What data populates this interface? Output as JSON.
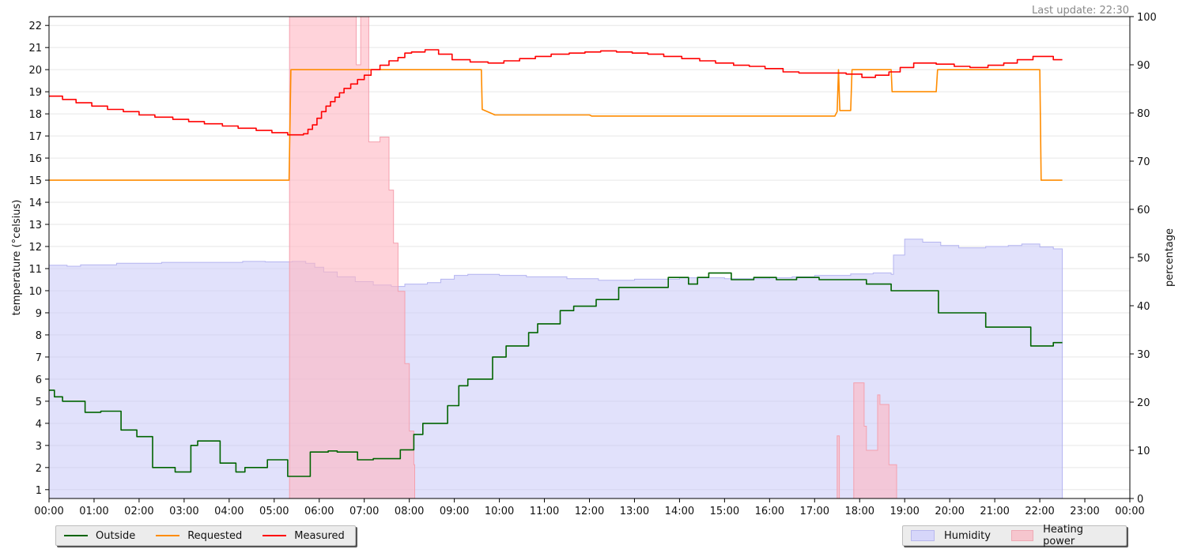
{
  "status": {
    "last_update": "Last update: 22:30"
  },
  "legend_left": [
    {
      "label": "Outside",
      "color": "#006400"
    },
    {
      "label": "Requested",
      "color": "#ff8c00"
    },
    {
      "label": "Measured",
      "color": "#ff0000"
    }
  ],
  "legend_right": [
    {
      "label": "Humidity",
      "color": "#c8c8f8"
    },
    {
      "label": "Heating power",
      "color": "#f8c0c8"
    }
  ],
  "chart_data": {
    "type": "line",
    "xlabel": "",
    "x_ticks": [
      "00:00",
      "01:00",
      "02:00",
      "03:00",
      "04:00",
      "05:00",
      "06:00",
      "07:00",
      "08:00",
      "09:00",
      "10:00",
      "11:00",
      "12:00",
      "13:00",
      "14:00",
      "15:00",
      "16:00",
      "17:00",
      "18:00",
      "19:00",
      "20:00",
      "21:00",
      "22:00",
      "23:00",
      "00:00"
    ],
    "xlim": [
      0,
      24
    ],
    "left_axis": {
      "label": "temperature (°celsius)",
      "ylim": [
        0.6,
        22.4
      ],
      "ticks": [
        1,
        2,
        3,
        4,
        5,
        6,
        7,
        8,
        9,
        10,
        11,
        12,
        13,
        14,
        15,
        16,
        17,
        18,
        19,
        20,
        21,
        22
      ]
    },
    "right_axis": {
      "label": "percentage",
      "ylim": [
        0,
        100
      ],
      "ticks": [
        0,
        10,
        20,
        30,
        40,
        50,
        60,
        70,
        80,
        90,
        100
      ]
    },
    "grid": true,
    "legend": [
      "bottom-left",
      "bottom-right"
    ],
    "series": [
      {
        "name": "Outside",
        "axis": "left",
        "kind": "step",
        "color": "#006400",
        "points": [
          [
            0,
            5.5
          ],
          [
            0.12,
            5.2
          ],
          [
            0.3,
            5.0
          ],
          [
            0.8,
            4.5
          ],
          [
            1.15,
            4.55
          ],
          [
            1.6,
            3.7
          ],
          [
            1.95,
            3.4
          ],
          [
            2.3,
            2.0
          ],
          [
            2.8,
            1.8
          ],
          [
            3.15,
            3.0
          ],
          [
            3.3,
            3.2
          ],
          [
            3.8,
            2.2
          ],
          [
            4.15,
            1.8
          ],
          [
            4.35,
            2.0
          ],
          [
            4.85,
            2.35
          ],
          [
            5.3,
            1.6
          ],
          [
            5.8,
            2.7
          ],
          [
            6.2,
            2.75
          ],
          [
            6.4,
            2.7
          ],
          [
            6.85,
            2.35
          ],
          [
            7.2,
            2.4
          ],
          [
            7.8,
            2.8
          ],
          [
            8.1,
            3.5
          ],
          [
            8.3,
            4.0
          ],
          [
            8.85,
            4.8
          ],
          [
            9.1,
            5.7
          ],
          [
            9.3,
            6.0
          ],
          [
            9.85,
            7.0
          ],
          [
            10.15,
            7.5
          ],
          [
            10.65,
            8.1
          ],
          [
            10.85,
            8.5
          ],
          [
            11.35,
            9.1
          ],
          [
            11.65,
            9.3
          ],
          [
            12.15,
            9.6
          ],
          [
            12.65,
            10.15
          ],
          [
            13.75,
            10.6
          ],
          [
            14.2,
            10.3
          ],
          [
            14.4,
            10.6
          ],
          [
            14.65,
            10.8
          ],
          [
            15.15,
            10.5
          ],
          [
            15.65,
            10.6
          ],
          [
            16.15,
            10.5
          ],
          [
            16.6,
            10.6
          ],
          [
            17.1,
            10.5
          ],
          [
            18.15,
            10.3
          ],
          [
            18.7,
            10.0
          ],
          [
            19.75,
            9.0
          ],
          [
            20.8,
            8.35
          ],
          [
            21.8,
            7.5
          ],
          [
            22.3,
            7.65
          ],
          [
            22.5,
            7.65
          ]
        ]
      },
      {
        "name": "Requested",
        "axis": "left",
        "kind": "line",
        "color": "#ff8c00",
        "points": [
          [
            0,
            15
          ],
          [
            5.33,
            15
          ],
          [
            5.37,
            20
          ],
          [
            9.6,
            20
          ],
          [
            9.62,
            18.2
          ],
          [
            9.85,
            18.0
          ],
          [
            9.9,
            17.95
          ],
          [
            12.0,
            17.95
          ],
          [
            12.05,
            17.9
          ],
          [
            17.45,
            17.9
          ],
          [
            17.5,
            18.1
          ],
          [
            17.53,
            20
          ],
          [
            17.56,
            18.15
          ],
          [
            17.8,
            18.15
          ],
          [
            17.83,
            20
          ],
          [
            18.7,
            20
          ],
          [
            18.72,
            19.0
          ],
          [
            19.7,
            19.0
          ],
          [
            19.73,
            20
          ],
          [
            22.0,
            20
          ],
          [
            22.03,
            15
          ],
          [
            22.5,
            15
          ]
        ]
      },
      {
        "name": "Measured",
        "axis": "left",
        "kind": "step",
        "color": "#ff0000",
        "points": [
          [
            0,
            18.8
          ],
          [
            0.3,
            18.65
          ],
          [
            0.6,
            18.5
          ],
          [
            0.95,
            18.35
          ],
          [
            1.3,
            18.2
          ],
          [
            1.65,
            18.1
          ],
          [
            2.0,
            17.95
          ],
          [
            2.35,
            17.85
          ],
          [
            2.75,
            17.75
          ],
          [
            3.1,
            17.65
          ],
          [
            3.45,
            17.55
          ],
          [
            3.85,
            17.45
          ],
          [
            4.2,
            17.35
          ],
          [
            4.6,
            17.25
          ],
          [
            4.95,
            17.15
          ],
          [
            5.3,
            17.05
          ],
          [
            5.65,
            17.1
          ],
          [
            5.75,
            17.3
          ],
          [
            5.85,
            17.5
          ],
          [
            5.95,
            17.8
          ],
          [
            6.05,
            18.1
          ],
          [
            6.15,
            18.35
          ],
          [
            6.25,
            18.55
          ],
          [
            6.35,
            18.75
          ],
          [
            6.45,
            18.95
          ],
          [
            6.55,
            19.15
          ],
          [
            6.7,
            19.35
          ],
          [
            6.85,
            19.55
          ],
          [
            7.0,
            19.75
          ],
          [
            7.15,
            20.0
          ],
          [
            7.35,
            20.2
          ],
          [
            7.55,
            20.4
          ],
          [
            7.75,
            20.55
          ],
          [
            7.9,
            20.75
          ],
          [
            8.05,
            20.8
          ],
          [
            8.35,
            20.9
          ],
          [
            8.65,
            20.7
          ],
          [
            8.95,
            20.45
          ],
          [
            9.35,
            20.35
          ],
          [
            9.75,
            20.3
          ],
          [
            10.1,
            20.4
          ],
          [
            10.45,
            20.5
          ],
          [
            10.8,
            20.6
          ],
          [
            11.15,
            20.7
          ],
          [
            11.55,
            20.75
          ],
          [
            11.9,
            20.8
          ],
          [
            12.25,
            20.85
          ],
          [
            12.6,
            20.8
          ],
          [
            12.95,
            20.75
          ],
          [
            13.3,
            20.7
          ],
          [
            13.65,
            20.6
          ],
          [
            14.05,
            20.5
          ],
          [
            14.45,
            20.4
          ],
          [
            14.8,
            20.3
          ],
          [
            15.2,
            20.2
          ],
          [
            15.55,
            20.15
          ],
          [
            15.9,
            20.05
          ],
          [
            16.3,
            19.9
          ],
          [
            16.65,
            19.85
          ],
          [
            17.0,
            19.85
          ],
          [
            17.35,
            19.85
          ],
          [
            17.7,
            19.8
          ],
          [
            18.05,
            19.65
          ],
          [
            18.35,
            19.75
          ],
          [
            18.65,
            19.9
          ],
          [
            18.9,
            20.1
          ],
          [
            19.2,
            20.3
          ],
          [
            19.7,
            20.25
          ],
          [
            20.1,
            20.15
          ],
          [
            20.45,
            20.1
          ],
          [
            20.85,
            20.2
          ],
          [
            21.2,
            20.3
          ],
          [
            21.5,
            20.45
          ],
          [
            21.85,
            20.6
          ],
          [
            22.3,
            20.45
          ],
          [
            22.5,
            20.45
          ]
        ]
      },
      {
        "name": "Humidity",
        "axis": "right",
        "kind": "area",
        "color": "#c8c8f8",
        "points": [
          [
            0,
            48.4
          ],
          [
            0.4,
            48.2
          ],
          [
            0.7,
            48.5
          ],
          [
            1.5,
            48.8
          ],
          [
            2.5,
            49.0
          ],
          [
            3.5,
            49.0
          ],
          [
            4.3,
            49.2
          ],
          [
            4.8,
            49.1
          ],
          [
            5.4,
            49.2
          ],
          [
            5.7,
            48.8
          ],
          [
            5.9,
            48.0
          ],
          [
            6.1,
            47.0
          ],
          [
            6.4,
            46.0
          ],
          [
            6.8,
            45.0
          ],
          [
            7.2,
            44.3
          ],
          [
            7.6,
            44.0
          ],
          [
            7.9,
            44.5
          ],
          [
            8.4,
            44.8
          ],
          [
            8.7,
            45.5
          ],
          [
            9.0,
            46.3
          ],
          [
            9.3,
            46.5
          ],
          [
            10.0,
            46.3
          ],
          [
            10.6,
            46.0
          ],
          [
            11.5,
            45.6
          ],
          [
            12.2,
            45.3
          ],
          [
            13.0,
            45.5
          ],
          [
            14.0,
            45.8
          ],
          [
            15.0,
            45.6
          ],
          [
            16.0,
            45.8
          ],
          [
            16.5,
            46.0
          ],
          [
            17.0,
            46.3
          ],
          [
            17.8,
            46.6
          ],
          [
            18.3,
            46.8
          ],
          [
            18.7,
            46.5
          ],
          [
            18.75,
            50.5
          ],
          [
            19.0,
            53.8
          ],
          [
            19.4,
            53.2
          ],
          [
            19.8,
            52.5
          ],
          [
            20.2,
            52.0
          ],
          [
            20.8,
            52.3
          ],
          [
            21.3,
            52.5
          ],
          [
            21.6,
            52.8
          ],
          [
            22.0,
            52.2
          ],
          [
            22.3,
            51.8
          ],
          [
            22.5,
            51.8
          ]
        ]
      },
      {
        "name": "Heating power",
        "axis": "right",
        "kind": "area",
        "color": "#ffb6c1",
        "points": [
          [
            0,
            0
          ],
          [
            5.32,
            0
          ],
          [
            5.34,
            100
          ],
          [
            6.8,
            100
          ],
          [
            6.82,
            90
          ],
          [
            6.9,
            90
          ],
          [
            6.92,
            100
          ],
          [
            7.05,
            100
          ],
          [
            7.1,
            74
          ],
          [
            7.3,
            74
          ],
          [
            7.35,
            75
          ],
          [
            7.5,
            75
          ],
          [
            7.55,
            64
          ],
          [
            7.6,
            64
          ],
          [
            7.65,
            53
          ],
          [
            7.7,
            53
          ],
          [
            7.75,
            43
          ],
          [
            7.85,
            43
          ],
          [
            7.9,
            28
          ],
          [
            7.95,
            28
          ],
          [
            8.0,
            14
          ],
          [
            8.05,
            14
          ],
          [
            8.1,
            7
          ],
          [
            8.12,
            0
          ],
          [
            17.45,
            0
          ],
          [
            17.5,
            13
          ],
          [
            17.52,
            13
          ],
          [
            17.55,
            0
          ],
          [
            17.85,
            0
          ],
          [
            17.87,
            24
          ],
          [
            18.05,
            24
          ],
          [
            18.1,
            15
          ],
          [
            18.15,
            10
          ],
          [
            18.35,
            10
          ],
          [
            18.4,
            21.5
          ],
          [
            18.45,
            19.5
          ],
          [
            18.6,
            19.5
          ],
          [
            18.65,
            7
          ],
          [
            18.8,
            7
          ],
          [
            18.82,
            0
          ],
          [
            22.5,
            0
          ]
        ]
      }
    ]
  }
}
